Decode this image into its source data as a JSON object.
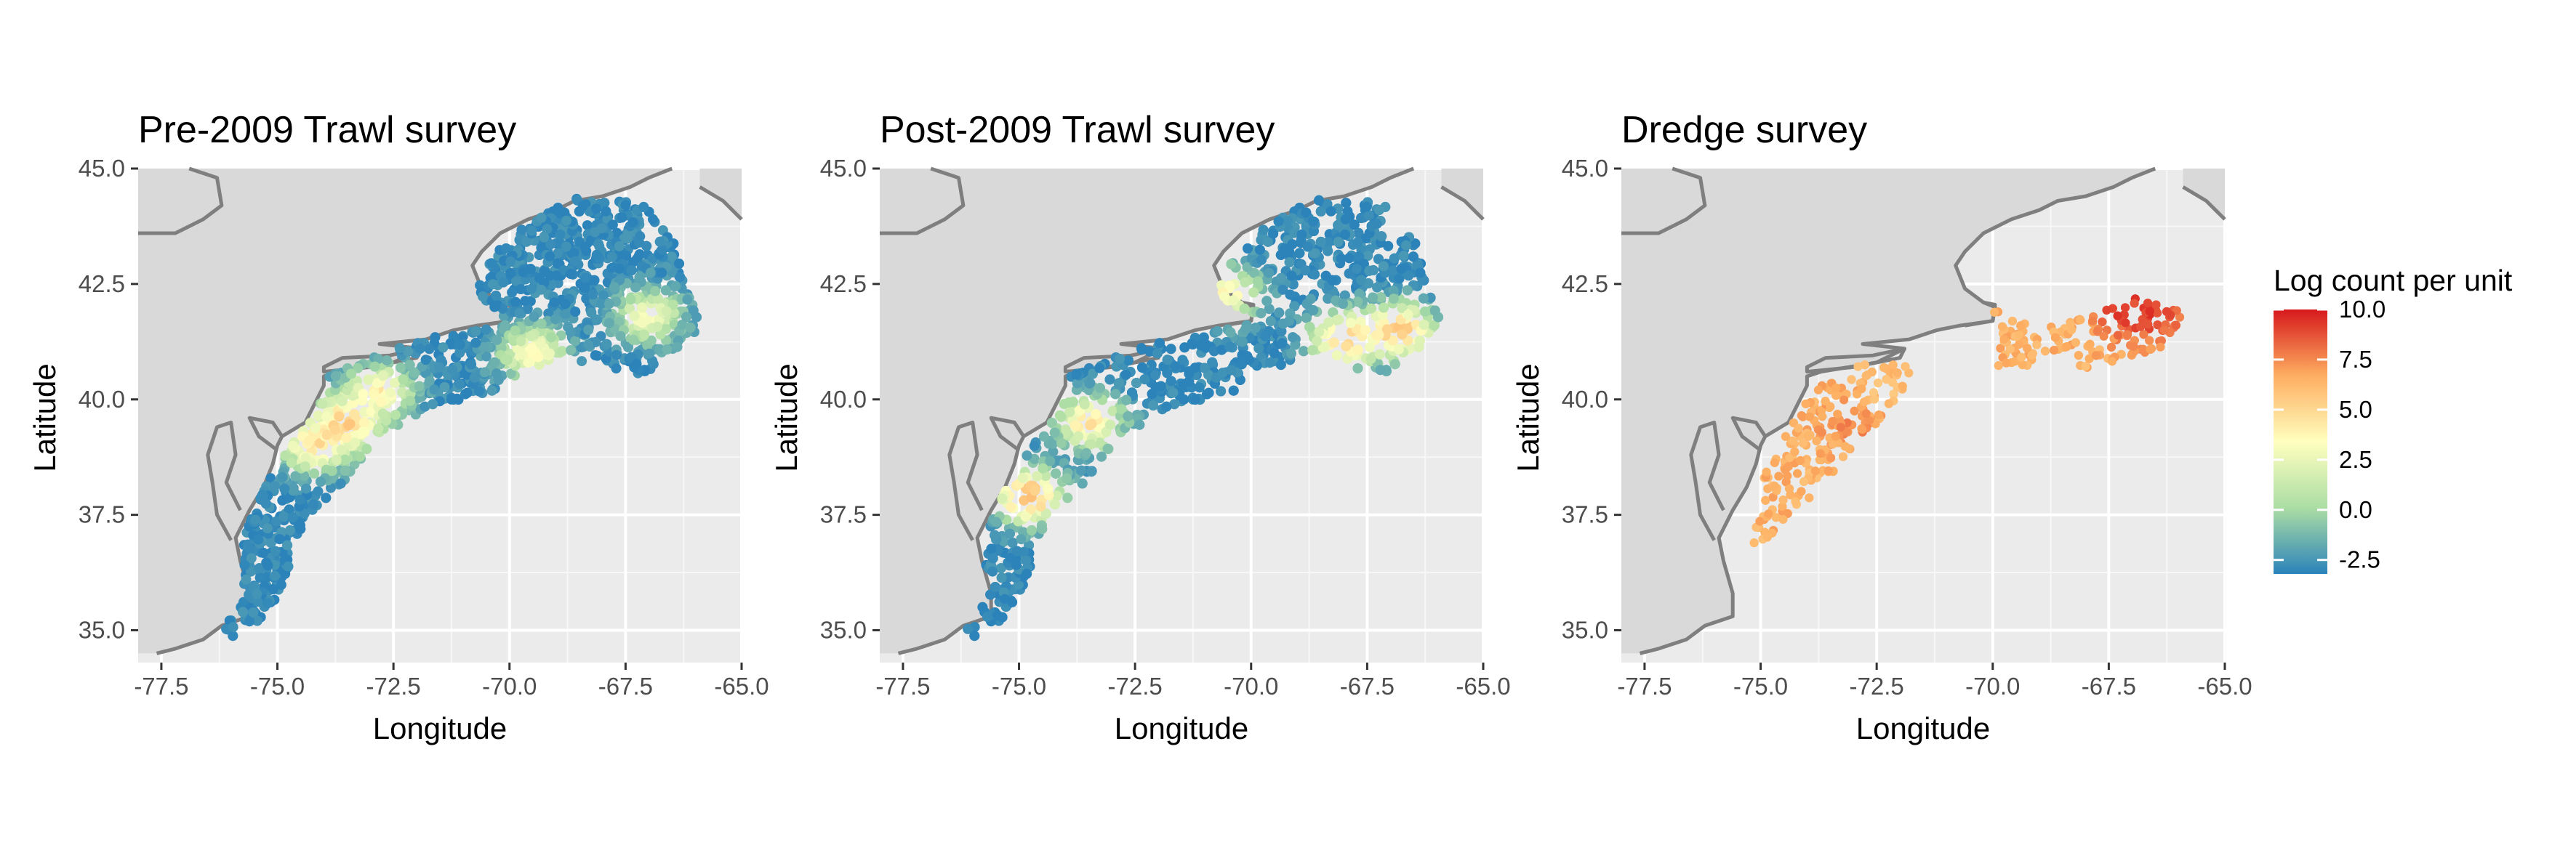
{
  "legend": {
    "title": "Log count per unit",
    "min": -3.2,
    "max": 10.0,
    "ticks": [
      10.0,
      7.5,
      5.0,
      2.5,
      0.0,
      -2.5
    ],
    "tick_labels": [
      "10.0",
      "7.5",
      "5.0",
      "2.5",
      "0.0",
      "-2.5"
    ],
    "stops": [
      {
        "value": -3.2,
        "color": "#2b83ba"
      },
      {
        "value": 0.1,
        "color": "#abdda4"
      },
      {
        "value": 3.4,
        "color": "#ffffbf"
      },
      {
        "value": 6.7,
        "color": "#fdae61"
      },
      {
        "value": 10.0,
        "color": "#d7191c"
      }
    ]
  },
  "colors": {
    "land": "#d9d9d9",
    "ocean": "#ebebeb",
    "gridline": "#ffffff",
    "coast": "#7f7f7f"
  },
  "chart_data": [
    {
      "type": "scatter",
      "title": "Pre-2009 Trawl survey",
      "xlabel": "Longitude",
      "ylabel": "Latitude",
      "xlim": [
        -78,
        -65
      ],
      "ylim": [
        34.3,
        45
      ],
      "xticks": [
        -77.5,
        -75.0,
        -72.5,
        -70.0,
        -67.5,
        -65.0
      ],
      "xtick_labels": [
        "-77.5",
        "-75.0",
        "-72.5",
        "-70.0",
        "-67.5",
        "-65.0"
      ],
      "yticks": [
        35.0,
        37.5,
        40.0,
        42.5,
        45.0
      ],
      "ytick_labels": [
        "35.0",
        "37.5",
        "40.0",
        "42.5",
        "45.0"
      ],
      "grid": true,
      "legend": "none",
      "coverage": "full trawl footprint",
      "predominant_value": -3.0,
      "hotspots": [
        {
          "lon": -74.2,
          "lat": 39.0,
          "value": 4.5
        },
        {
          "lon": -73.5,
          "lat": 39.5,
          "value": 5.5
        },
        {
          "lon": -72.8,
          "lat": 40.2,
          "value": 4.0
        },
        {
          "lon": -69.5,
          "lat": 41.0,
          "value": 3.5
        },
        {
          "lon": -67.0,
          "lat": 41.8,
          "value": 3.0
        }
      ]
    },
    {
      "type": "scatter",
      "title": "Post-2009 Trawl survey",
      "xlabel": "Longitude",
      "ylabel": "Latitude",
      "xlim": [
        -78,
        -65
      ],
      "ylim": [
        34.3,
        45
      ],
      "xticks": [
        -77.5,
        -75.0,
        -72.5,
        -70.0,
        -67.5,
        -65.0
      ],
      "xtick_labels": [
        "-77.5",
        "-75.0",
        "-72.5",
        "-70.0",
        "-67.5",
        "-65.0"
      ],
      "yticks": [
        35.0,
        37.5,
        40.0,
        42.5,
        45.0
      ],
      "ytick_labels": [
        "35.0",
        "37.5",
        "40.0",
        "42.5",
        "45.0"
      ],
      "grid": true,
      "legend": "none",
      "coverage": "full trawl footprint",
      "predominant_value": -3.0,
      "hotspots": [
        {
          "lon": -74.8,
          "lat": 37.9,
          "value": 6.5
        },
        {
          "lon": -73.5,
          "lat": 39.5,
          "value": 4.5
        },
        {
          "lon": -70.5,
          "lat": 42.3,
          "value": 3.5
        },
        {
          "lon": -68.0,
          "lat": 41.3,
          "value": 5.5
        },
        {
          "lon": -66.8,
          "lat": 41.5,
          "value": 6.0
        }
      ]
    },
    {
      "type": "scatter",
      "title": "Dredge survey",
      "xlabel": "Longitude",
      "ylabel": "Latitude",
      "xlim": [
        -78,
        -65
      ],
      "ylim": [
        34.3,
        45
      ],
      "xticks": [
        -77.5,
        -75.0,
        -72.5,
        -70.0,
        -67.5,
        -65.0
      ],
      "xtick_labels": [
        "-77.5",
        "-75.0",
        "-72.5",
        "-70.0",
        "-67.5",
        "-65.0"
      ],
      "yticks": [
        35.0,
        37.5,
        40.0,
        42.5,
        45.0
      ],
      "ytick_labels": [
        "35.0",
        "37.5",
        "40.0",
        "42.5",
        "45.0"
      ],
      "grid": true,
      "legend": "right",
      "coverage": "mid-Atlantic shelf and Georges Bank",
      "predominant_value": 6.5,
      "hotspots": [
        {
          "lon": -73.0,
          "lat": 39.5,
          "value": 7.5
        },
        {
          "lon": -72.2,
          "lat": 40.3,
          "value": 6.0
        },
        {
          "lon": -67.2,
          "lat": 42.0,
          "value": 9.5
        },
        {
          "lon": -66.5,
          "lat": 41.8,
          "value": 9.0
        },
        {
          "lon": -69.0,
          "lat": 41.2,
          "value": 6.5
        }
      ]
    }
  ]
}
